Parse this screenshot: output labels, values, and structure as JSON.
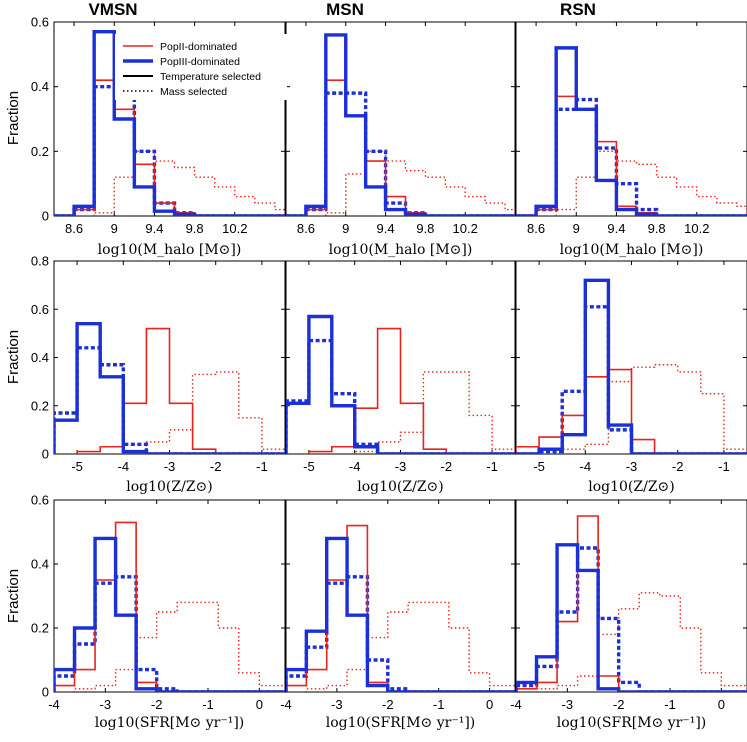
{
  "chart_data": {
    "type": "histogram-grid",
    "column_titles": [
      "VMSN",
      "MSN",
      "RSN"
    ],
    "ylabel": "Fraction",
    "legend": {
      "placement": "top-right of first panel",
      "entries": [
        {
          "name": "PopII-dominated",
          "color": "#e8221d",
          "style": "solid-thin"
        },
        {
          "name": "PopIII-dominated",
          "color": "#1b30d6",
          "style": "solid-thick"
        },
        {
          "name": "Temperature selected",
          "color": "#000000",
          "style": "solid"
        },
        {
          "name": "Mass selected",
          "color": "#000000",
          "style": "dotted"
        }
      ]
    },
    "rows": [
      {
        "quantity": "halo mass",
        "xlabel": "log10(M_halo [M⊙])",
        "xlim": [
          8.4,
          10.7
        ],
        "ylim": [
          0,
          0.6
        ],
        "xticks": [
          8.6,
          9.0,
          9.4,
          9.8,
          10.2
        ],
        "xtick_labels": [
          "8.6",
          "9",
          "9.4",
          "9.8",
          "10.2"
        ],
        "yticks": [
          0,
          0.2,
          0.4,
          0.6
        ],
        "ytick_labels": [
          "0",
          "0.2",
          "0.4",
          "0.6"
        ],
        "bin_edges": [
          8.4,
          8.6,
          8.8,
          9.0,
          9.2,
          9.4,
          9.6,
          9.8,
          10.0,
          10.2,
          10.4,
          10.6,
          10.7
        ],
        "panels": [
          {
            "PopII_temperature": [
              0,
              0.02,
              0.42,
              0.33,
              0.16,
              0.04,
              0.01,
              0,
              0,
              0,
              0,
              0
            ],
            "PopIII_temperature": [
              0,
              0.03,
              0.57,
              0.3,
              0.09,
              0.015,
              0.005,
              0,
              0,
              0,
              0,
              0
            ],
            "PopII_mass": [
              0,
              0,
              0.01,
              0.12,
              0.2,
              0.17,
              0.15,
              0.12,
              0.09,
              0.06,
              0.04,
              0.02
            ],
            "PopIII_mass": [
              0,
              0.02,
              0.4,
              0.37,
              0.2,
              0.04,
              0.01,
              0,
              0,
              0,
              0,
              0
            ]
          },
          {
            "PopII_temperature": [
              0,
              0.02,
              0.42,
              0.31,
              0.17,
              0.06,
              0.01,
              0,
              0,
              0,
              0,
              0
            ],
            "PopIII_temperature": [
              0,
              0.03,
              0.56,
              0.31,
              0.09,
              0.02,
              0.005,
              0,
              0,
              0,
              0,
              0
            ],
            "PopII_mass": [
              0,
              0,
              0.01,
              0.13,
              0.2,
              0.17,
              0.14,
              0.12,
              0.09,
              0.06,
              0.04,
              0.02
            ],
            "PopIII_mass": [
              0,
              0.02,
              0.38,
              0.38,
              0.2,
              0.04,
              0.01,
              0,
              0,
              0,
              0,
              0
            ]
          },
          {
            "PopII_temperature": [
              0,
              0.02,
              0.37,
              0.33,
              0.23,
              0.03,
              0.01,
              0,
              0,
              0,
              0,
              0
            ],
            "PopIII_temperature": [
              0,
              0.03,
              0.52,
              0.33,
              0.11,
              0.02,
              0.005,
              0,
              0,
              0,
              0,
              0
            ],
            "PopII_mass": [
              0,
              0,
              0.02,
              0.12,
              0.2,
              0.17,
              0.16,
              0.12,
              0.09,
              0.06,
              0.04,
              0.03
            ],
            "PopIII_mass": [
              0,
              0.02,
              0.33,
              0.36,
              0.21,
              0.1,
              0.02,
              0,
              0,
              0,
              0,
              0
            ]
          }
        ]
      },
      {
        "quantity": "metallicity",
        "xlabel": "log10(Z/Z⊙)",
        "xlim": [
          -5.5,
          -0.5
        ],
        "ylim": [
          0,
          0.8
        ],
        "xticks": [
          -5,
          -4,
          -3,
          -2,
          -1
        ],
        "xtick_labels": [
          "-5",
          "-4",
          "-3",
          "-2",
          "-1"
        ],
        "yticks": [
          0,
          0.2,
          0.4,
          0.6,
          0.8
        ],
        "ytick_labels": [
          "0",
          "0.2",
          "0.4",
          "0.6",
          "0.8"
        ],
        "bin_edges": [
          -5.5,
          -5.0,
          -4.5,
          -4.0,
          -3.5,
          -3.0,
          -2.5,
          -2.0,
          -1.5,
          -1.0,
          -0.5
        ],
        "panels": [
          {
            "PopII_temperature": [
              0,
              0.01,
              0.03,
              0.21,
              0.52,
              0.21,
              0.02,
              0,
              0,
              0
            ],
            "PopIII_temperature": [
              0.14,
              0.54,
              0.32,
              0.01,
              0,
              0,
              0,
              0,
              0,
              0
            ],
            "PopII_mass": [
              0,
              0,
              0,
              0.01,
              0.05,
              0.1,
              0.33,
              0.34,
              0.15,
              0.02
            ],
            "PopIII_mass": [
              0.17,
              0.44,
              0.37,
              0.04,
              0,
              0,
              0,
              0,
              0,
              0
            ]
          },
          {
            "PopII_temperature": [
              0,
              0.01,
              0.03,
              0.19,
              0.52,
              0.21,
              0.02,
              0,
              0,
              0
            ],
            "PopIII_temperature": [
              0.21,
              0.57,
              0.2,
              0.03,
              0,
              0,
              0,
              0,
              0,
              0
            ],
            "PopII_mass": [
              0,
              0,
              0,
              0.01,
              0.05,
              0.09,
              0.34,
              0.34,
              0.16,
              0.02
            ],
            "PopIII_mass": [
              0.22,
              0.47,
              0.25,
              0.04,
              0,
              0,
              0,
              0,
              0,
              0
            ]
          },
          {
            "PopII_temperature": [
              0.03,
              0.07,
              0.16,
              0.32,
              0.35,
              0.06,
              0,
              0,
              0,
              0
            ],
            "PopIII_temperature": [
              0,
              0.02,
              0.08,
              0.72,
              0.12,
              0,
              0,
              0,
              0,
              0
            ],
            "PopII_mass": [
              0,
              0,
              0.02,
              0.04,
              0.3,
              0.36,
              0.37,
              0.34,
              0.25,
              0.02
            ],
            "PopIII_mass": [
              0,
              0.01,
              0.26,
              0.61,
              0.1,
              0,
              0,
              0,
              0,
              0
            ]
          }
        ]
      },
      {
        "quantity": "star formation rate",
        "xlabel": "log10(SFR[M⊙ yr⁻¹])",
        "xlim": [
          -4,
          0.5
        ],
        "ylim": [
          0,
          0.6
        ],
        "xticks": [
          -4,
          -3,
          -2,
          -1,
          0
        ],
        "xtick_labels": [
          "-4",
          "-3",
          "-2",
          "-1",
          "0"
        ],
        "yticks": [
          0,
          0.2,
          0.4,
          0.6
        ],
        "ytick_labels": [
          "0",
          "0.2",
          "0.4",
          "0.6"
        ],
        "bin_edges": [
          -4.0,
          -3.6,
          -3.2,
          -2.8,
          -2.4,
          -2.0,
          -1.6,
          -1.2,
          -0.8,
          -0.4,
          0.0,
          0.5
        ],
        "panels": [
          {
            "PopII_temperature": [
              0.02,
              0.07,
              0.35,
              0.53,
              0.03,
              0,
              0,
              0,
              0,
              0,
              0
            ],
            "PopIII_temperature": [
              0.07,
              0.2,
              0.48,
              0.24,
              0.01,
              0,
              0,
              0,
              0,
              0,
              0
            ],
            "PopII_mass": [
              0,
              0.01,
              0.02,
              0.07,
              0.17,
              0.25,
              0.28,
              0.28,
              0.2,
              0.06,
              0.02
            ],
            "PopIII_mass": [
              0.05,
              0.15,
              0.34,
              0.36,
              0.07,
              0.01,
              0,
              0,
              0,
              0,
              0
            ]
          },
          {
            "PopII_temperature": [
              0.02,
              0.07,
              0.35,
              0.52,
              0.03,
              0,
              0,
              0,
              0,
              0,
              0
            ],
            "PopIII_temperature": [
              0.07,
              0.19,
              0.48,
              0.24,
              0.02,
              0,
              0,
              0,
              0,
              0,
              0
            ],
            "PopII_mass": [
              0,
              0.01,
              0.02,
              0.07,
              0.17,
              0.25,
              0.28,
              0.28,
              0.2,
              0.06,
              0.02
            ],
            "PopIII_mass": [
              0.05,
              0.14,
              0.34,
              0.36,
              0.1,
              0.01,
              0,
              0,
              0,
              0,
              0
            ]
          },
          {
            "PopII_temperature": [
              0.01,
              0.03,
              0.22,
              0.55,
              0.05,
              0,
              0,
              0,
              0,
              0,
              0
            ],
            "PopIII_temperature": [
              0.03,
              0.11,
              0.46,
              0.38,
              0.01,
              0,
              0,
              0,
              0,
              0,
              0
            ],
            "PopII_mass": [
              0,
              0.01,
              0.02,
              0.05,
              0.18,
              0.26,
              0.31,
              0.3,
              0.2,
              0.06,
              0.02
            ],
            "PopIII_mass": [
              0.02,
              0.08,
              0.25,
              0.45,
              0.23,
              0.03,
              0,
              0,
              0,
              0,
              0
            ]
          }
        ]
      }
    ]
  }
}
